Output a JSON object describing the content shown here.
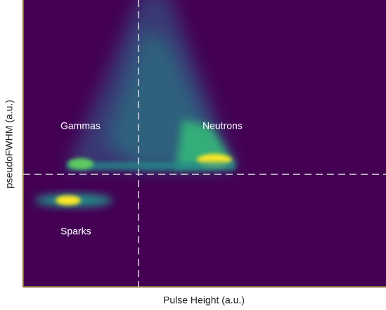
{
  "chart_data": {
    "type": "heatmap",
    "xlabel": "Pulse Height (a.u.)",
    "ylabel": "pseudoFWHM (a.u.)",
    "annotations": [
      {
        "text": "Gammas"
      },
      {
        "text": "Neutrons"
      },
      {
        "text": "Sparks"
      }
    ],
    "background": "#440154"
  }
}
